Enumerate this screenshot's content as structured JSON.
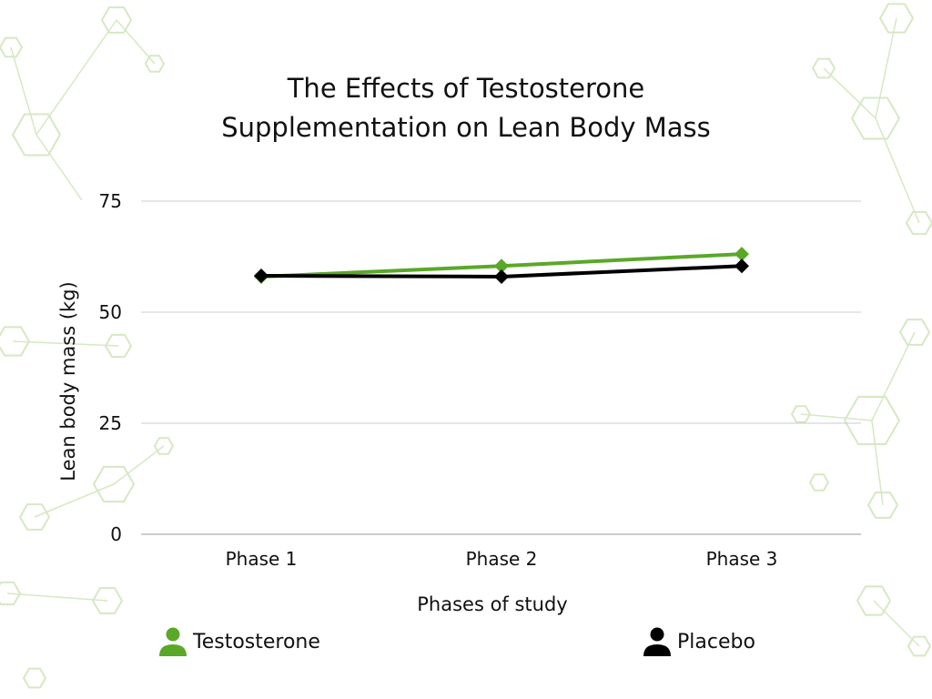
{
  "colors": {
    "testosterone": "#5aa828",
    "placebo": "#000000",
    "grid": "#cccccc",
    "background_pattern": "#d6e8c4"
  },
  "chart_data": {
    "type": "line",
    "title_line1": "The Effects of Testosterone",
    "title_line2": "Supplementation on Lean Body Mass",
    "xlabel": "Phases of study",
    "ylabel": "Lean body mass (kg)",
    "categories": [
      "Phase 1",
      "Phase 2",
      "Phase 3"
    ],
    "ylim": [
      0,
      75
    ],
    "yticks": [
      0,
      25,
      50,
      75
    ],
    "grid": true,
    "marker": "diamond",
    "series": [
      {
        "name": "Testosterone",
        "color": "#5aa828",
        "values": [
          58,
          60.4,
          63.1
        ]
      },
      {
        "name": "Placebo",
        "color": "#000000",
        "values": [
          58.2,
          58,
          60.4
        ]
      }
    ],
    "legend": {
      "placement": "bottom",
      "icon": "person-icon"
    }
  }
}
